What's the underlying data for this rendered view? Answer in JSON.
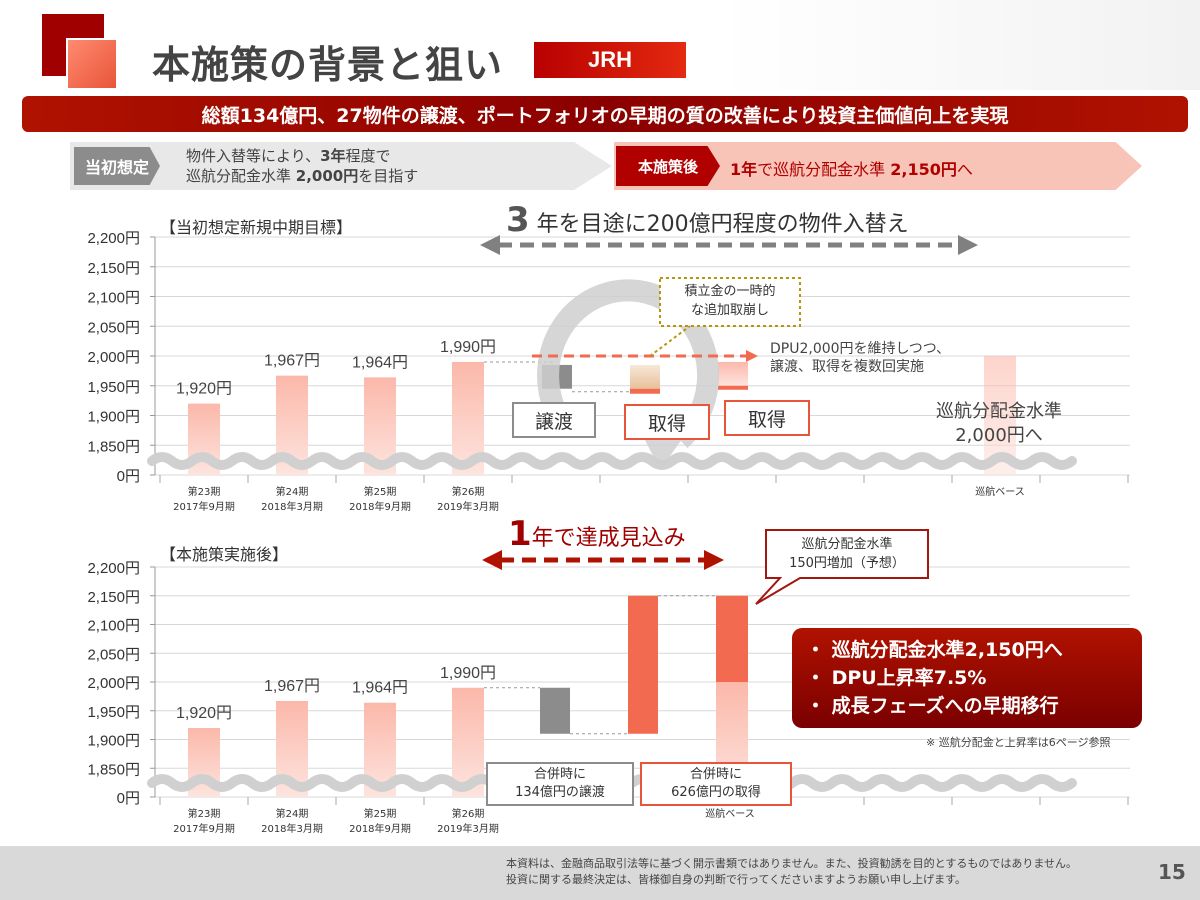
{
  "header": {
    "title": "本施策の背景と狙い",
    "badge": "JRH",
    "banner": "総額134億円、27物件の譲渡、ポートフォリオの早期の質の改善により投資主価値向上を実現"
  },
  "before": {
    "label": "当初想定",
    "line1_a": "物件入替等により、",
    "line1_b": "3年",
    "line1_c": "程度で",
    "line2_a": "巡航分配金水準 ",
    "line2_b": "2,000円",
    "line2_c": "を目指す"
  },
  "after": {
    "label": "本施策後",
    "text_a": "1年",
    "text_b": "で巡航分配金水準 ",
    "text_c": "2,150円",
    "text_d": "へ"
  },
  "top_chart": {
    "section_title": "【当初想定新規中期目標】",
    "heading_num": "3",
    "heading_text": " 年を目途に200億円程度の物件入替え",
    "note_dotted": [
      "積立金の一時的",
      "な追加取崩し"
    ],
    "dpu_note": [
      "DPU2,000円を維持しつつ、",
      "譲渡、取得を複数回実施"
    ],
    "sell_label": "譲渡",
    "buy_label1": "取得",
    "buy_label2": "取得",
    "target_label": [
      "巡航分配金水準",
      "2,000円へ"
    ],
    "base_label": "巡航ベース"
  },
  "bottom_chart": {
    "section_title": "【本施策実施後】",
    "heading_num": "1",
    "heading_text": "年で達成見込み",
    "callout": [
      "巡航分配金水準",
      "150円増加（予想）"
    ],
    "sell_box": [
      "合併時に",
      "134億円の譲渡"
    ],
    "buy_box": [
      "合併時に",
      "626億円の取得"
    ],
    "base_label": "巡航ベース"
  },
  "bullets": [
    "・ 巡航分配金水準2,150円へ",
    "・ DPU上昇率7.5%",
    "・ 成長フェーズへの早期移行"
  ],
  "note": "※ 巡航分配金と上昇率は6ページ参照",
  "footer": {
    "line1": "本資料は、金融商品取引法等に基づく開示書類ではありません。また、投資勧誘を目的とするものではありません。",
    "line2": "投資に関する最終決定は、皆様御自身の判断で行ってくださいますようお願い申し上げます。",
    "page": "15"
  },
  "chart_data": [
    {
      "type": "bar",
      "title": "【当初想定新規中期目標】",
      "categories": [
        [
          "第23期",
          "2017年9月期"
        ],
        [
          "第24期",
          "2018年3月期"
        ],
        [
          "第25期",
          "2018年9月期"
        ],
        [
          "第26期",
          "2019年3月期"
        ]
      ],
      "values": [
        1920,
        1967,
        1964,
        1990
      ],
      "value_labels": [
        "1,920円",
        "1,967円",
        "1,964円",
        "1,990円"
      ],
      "y_ticks": [
        "2,200円",
        "2,150円",
        "2,100円",
        "2,050円",
        "2,000円",
        "1,950円",
        "1,900円",
        "1,850円",
        "0円"
      ],
      "tick_values": [
        2200,
        2150,
        2100,
        2050,
        2000,
        1950,
        1900,
        1850,
        1800
      ],
      "ylim": [
        1800,
        2200
      ],
      "target_value": 2000,
      "grid": true
    },
    {
      "type": "bar",
      "title": "【本施策実施後】",
      "categories": [
        [
          "第23期",
          "2017年9月期"
        ],
        [
          "第24期",
          "2018年3月期"
        ],
        [
          "第25期",
          "2018年9月期"
        ],
        [
          "第26期",
          "2019年3月期"
        ]
      ],
      "values": [
        1920,
        1967,
        1964,
        1990
      ],
      "value_labels": [
        "1,920円",
        "1,967円",
        "1,964円",
        "1,990円"
      ],
      "y_ticks": [
        "2,200円",
        "2,150円",
        "2,100円",
        "2,050円",
        "2,000円",
        "1,950円",
        "1,900円",
        "1,850円",
        "0円"
      ],
      "tick_values": [
        2200,
        2150,
        2100,
        2050,
        2000,
        1950,
        1900,
        1850,
        1800
      ],
      "ylim": [
        1800,
        2200
      ],
      "sell_range": [
        1910,
        1990
      ],
      "buy_range": [
        1910,
        2150
      ],
      "base_range": [
        1800,
        2150
      ],
      "base_split": 2000,
      "grid": true
    }
  ],
  "colors": {
    "accent": "#b00000",
    "bar_pink": "#fcc9bf",
    "bar_orange": "#f26a4f",
    "grey": "#8c8c8c"
  }
}
